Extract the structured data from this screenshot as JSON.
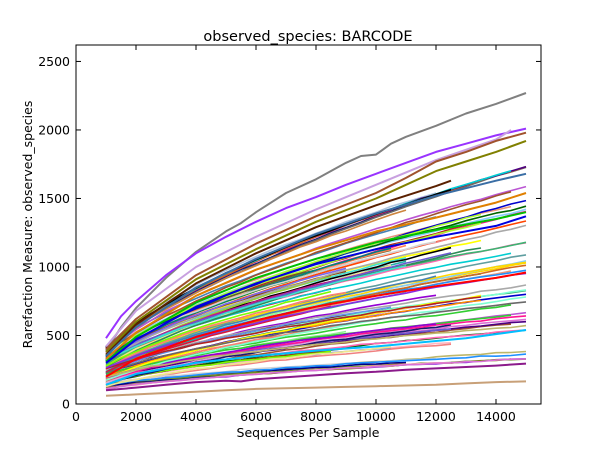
{
  "chart_data": {
    "type": "line",
    "title": "observed_species: BARCODE",
    "xlabel": "Sequences Per Sample",
    "ylabel": "Rarefaction Measure: observed_species",
    "xlim": [
      0,
      15500
    ],
    "ylim": [
      0,
      2620
    ],
    "xticks": [
      0,
      2000,
      4000,
      6000,
      8000,
      10000,
      12000,
      14000
    ],
    "yticks": [
      0,
      500,
      1000,
      1500,
      2000,
      2500
    ],
    "grid": false,
    "legend": "none",
    "highlight_series": [
      {
        "color": "#808080",
        "x": [
          1000,
          1500,
          2000,
          3000,
          4000,
          5000,
          5500,
          6000,
          7000,
          8000,
          9000,
          9500,
          10000,
          10500,
          11000,
          12000,
          13000,
          14000,
          15000
        ],
        "values": [
          390,
          560,
          700,
          920,
          1110,
          1260,
          1320,
          1400,
          1540,
          1640,
          1760,
          1810,
          1820,
          1900,
          1950,
          2030,
          2120,
          2190,
          2270
        ]
      },
      {
        "color": "#9933ff",
        "x": [
          1000,
          1500,
          2000,
          3000,
          4000,
          5000,
          6000,
          7000,
          8000,
          9000,
          10000,
          11000,
          12000,
          13000,
          14000,
          15000
        ],
        "values": [
          480,
          640,
          750,
          940,
          1100,
          1220,
          1330,
          1430,
          1510,
          1600,
          1680,
          1760,
          1840,
          1900,
          1960,
          2010
        ]
      },
      {
        "color": "#c8a0e0",
        "x": [
          1000,
          2000,
          4000,
          6000,
          8000,
          10000,
          12000,
          14000,
          14500
        ],
        "values": [
          420,
          680,
          1000,
          1220,
          1420,
          1600,
          1780,
          1930,
          2000
        ]
      },
      {
        "color": "#a0522d",
        "x": [
          1000,
          2000,
          4000,
          6000,
          8000,
          10000,
          11000,
          12000,
          13000,
          14000,
          15000
        ],
        "values": [
          400,
          620,
          940,
          1170,
          1370,
          1540,
          1650,
          1770,
          1840,
          1920,
          1980
        ]
      },
      {
        "color": "#808000",
        "x": [
          1000,
          2000,
          4000,
          6000,
          8000,
          10000,
          11000,
          12000,
          13000,
          14000,
          15000
        ],
        "values": [
          380,
          600,
          910,
          1130,
          1330,
          1500,
          1600,
          1700,
          1770,
          1840,
          1920
        ]
      },
      {
        "color": "#5a2000",
        "x": [
          1000,
          2000,
          4000,
          6000,
          8000,
          10000,
          11000,
          12000,
          12500
        ],
        "values": [
          360,
          580,
          880,
          1100,
          1290,
          1450,
          1520,
          1590,
          1630
        ]
      },
      {
        "color": "#3a6ea5",
        "x": [
          1000,
          2000,
          4000,
          6000,
          8000,
          10000,
          12000,
          14000,
          15000
        ],
        "values": [
          350,
          560,
          850,
          1060,
          1240,
          1390,
          1520,
          1630,
          1680
        ]
      },
      {
        "color": "#e08000",
        "x": [
          1000,
          2000,
          4000,
          6000,
          8000,
          10000,
          12000,
          14000,
          15000
        ],
        "values": [
          330,
          520,
          790,
          980,
          1130,
          1260,
          1360,
          1470,
          1540
        ]
      },
      {
        "color": "#00c000",
        "x": [
          1000,
          2000,
          4000,
          6000,
          8000,
          10000,
          12000,
          14000,
          15000
        ],
        "values": [
          310,
          490,
          740,
          920,
          1060,
          1180,
          1270,
          1350,
          1400
        ]
      },
      {
        "color": "#0000e0",
        "x": [
          1000,
          2000,
          4000,
          6000,
          8000,
          10000,
          12000,
          14000,
          15000
        ],
        "values": [
          300,
          470,
          710,
          880,
          1020,
          1130,
          1220,
          1300,
          1370
        ]
      },
      {
        "color": "#ff0000",
        "x": [
          1000,
          2000,
          4000,
          6000,
          8000,
          10000,
          12000,
          14000,
          15000
        ],
        "values": [
          200,
          330,
          490,
          610,
          710,
          790,
          860,
          920,
          960
        ]
      },
      {
        "color": "#00bfff",
        "x": [
          1000,
          2000,
          4000,
          6000,
          8000,
          10000,
          11000,
          12000,
          13000,
          14000,
          15000
        ],
        "values": [
          140,
          220,
          300,
          350,
          390,
          420,
          440,
          460,
          480,
          510,
          540
        ]
      },
      {
        "color": "#8b1a8b",
        "x": [
          1000,
          2000,
          3000,
          4000,
          5000,
          5500,
          6000,
          7000,
          8000,
          9000,
          10000,
          11000,
          12000,
          13000,
          14000,
          15000
        ],
        "values": [
          100,
          120,
          140,
          160,
          170,
          165,
          180,
          195,
          210,
          225,
          235,
          250,
          260,
          270,
          280,
          295
        ]
      },
      {
        "color": "#c8a078",
        "x": [
          1000,
          2000,
          3000,
          4000,
          5000,
          6000,
          7000,
          8000,
          9000,
          10000,
          11000,
          12000,
          13000,
          14000,
          15000
        ],
        "values": [
          60,
          70,
          80,
          90,
          100,
          110,
          115,
          120,
          125,
          130,
          135,
          140,
          150,
          160,
          165
        ]
      }
    ],
    "background_series": {
      "count": 110,
      "x_start": 1000,
      "x_end_values": [
        15000,
        12500,
        9000,
        14500,
        11000,
        15000,
        13500,
        8500,
        15000,
        10500,
        12000,
        15000
      ],
      "y_at_1000_range": [
        110,
        420
      ],
      "y_at_15000_range": [
        330,
        1730
      ],
      "palette": [
        "#ff69b4",
        "#ffb6c1",
        "#90ee90",
        "#32cd32",
        "#ff7f50",
        "#ffd700",
        "#ffff00",
        "#98fb98",
        "#87cefa",
        "#6495ed",
        "#dda0dd",
        "#ba55d3",
        "#da70d6",
        "#f08080",
        "#fa8072",
        "#e9967a",
        "#20b2aa",
        "#3cb371",
        "#2e8b57",
        "#228b22",
        "#006400",
        "#008080",
        "#4682b4",
        "#1e90ff",
        "#0000cd",
        "#191970",
        "#8b4513",
        "#a0522d",
        "#cd853f",
        "#d2691e",
        "#b22222",
        "#dc143c",
        "#ff1493",
        "#c71585",
        "#9400d3",
        "#8a2be2",
        "#4b0082",
        "#6a5acd",
        "#7b68ee",
        "#00ced1",
        "#40e0d0",
        "#7fffd4",
        "#adff2f",
        "#7cfc00",
        "#bdb76b",
        "#f0e68c",
        "#d3d3d3",
        "#a9a9a9",
        "#696969",
        "#000000",
        "#800000",
        "#808000",
        "#000080",
        "#ff4500",
        "#ff8c00",
        "#9acd32",
        "#6b8e23",
        "#556b2f",
        "#b0c4de",
        "#5f9ea0"
      ]
    }
  }
}
